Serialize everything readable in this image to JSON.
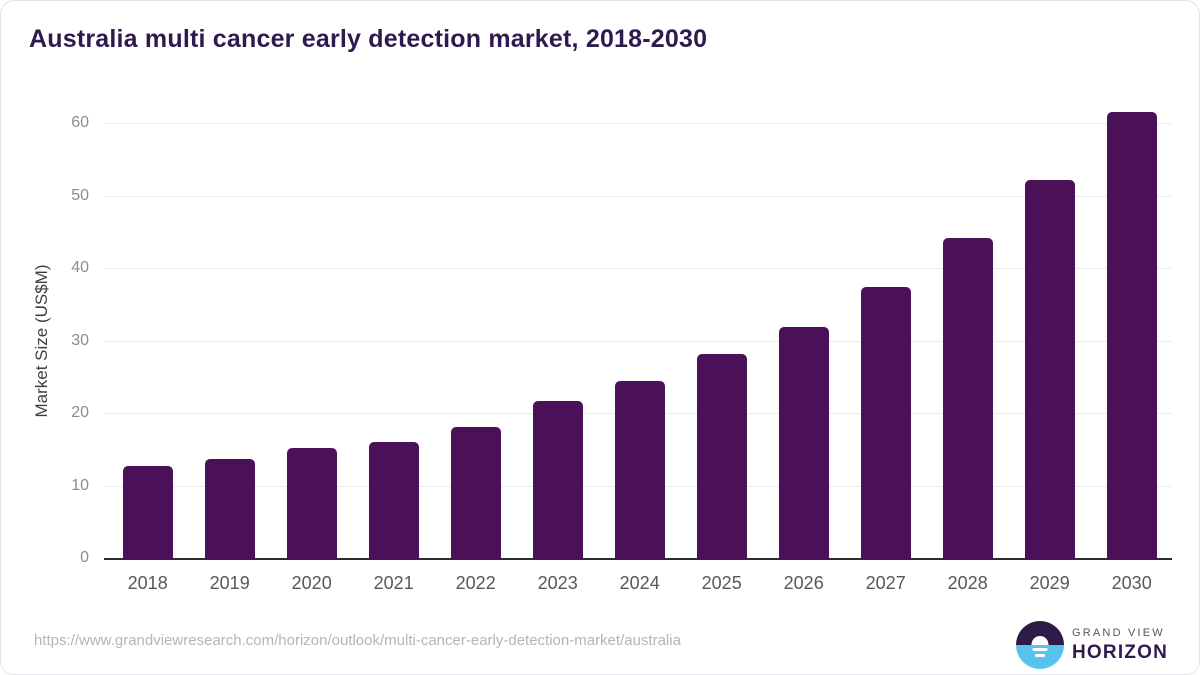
{
  "chart_data": {
    "type": "bar",
    "title": "Australia multi cancer early detection market, 2018-2030",
    "xlabel": "",
    "ylabel": "Market Size (US$M)",
    "categories": [
      "2018",
      "2019",
      "2020",
      "2021",
      "2022",
      "2023",
      "2024",
      "2025",
      "2026",
      "2027",
      "2028",
      "2029",
      "2030"
    ],
    "values": [
      12.8,
      13.8,
      15.3,
      16.2,
      18.2,
      21.8,
      24.6,
      28.3,
      32.0,
      37.5,
      44.3,
      52.3,
      61.7
    ],
    "yticks": [
      0,
      10,
      20,
      30,
      40,
      50,
      60
    ],
    "ylim": [
      0,
      63
    ],
    "grid": true,
    "legend": false,
    "bar_color": "#4a1158",
    "title_color": "#2f1a4f"
  },
  "footer": {
    "source_url": "https://www.grandviewresearch.com/horizon/outlook/multi-cancer-early-detection-market/australia",
    "logo": {
      "line1": "GRAND VIEW",
      "line2": "HORIZON",
      "circle_top_color": "#2e1a47",
      "circle_bottom_color": "#57c4ef"
    }
  }
}
